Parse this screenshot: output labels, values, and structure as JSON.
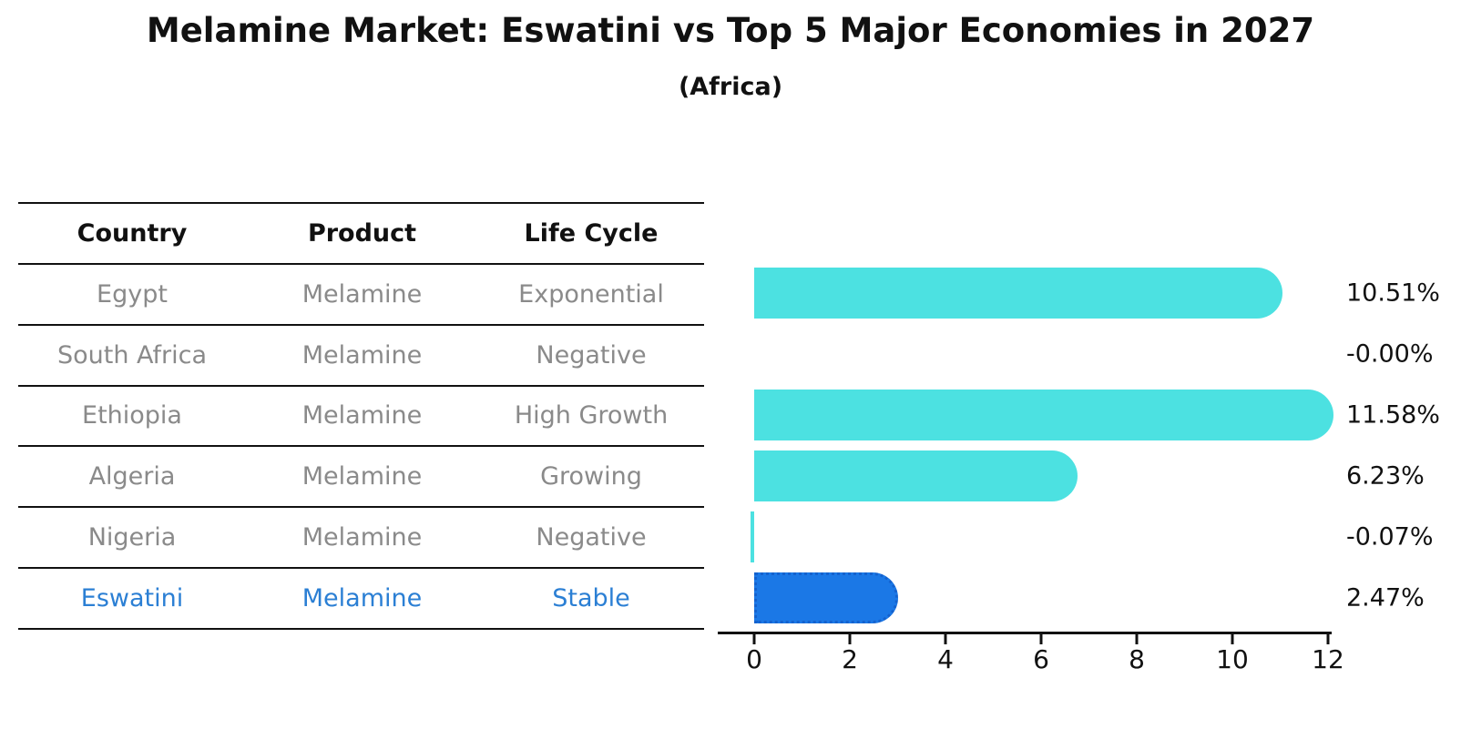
{
  "title": "Melamine Market: Eswatini vs Top 5 Major Economies in 2027",
  "subtitle": "(Africa)",
  "table": {
    "headers": [
      "Country",
      "Product",
      "Life Cycle"
    ],
    "rows": [
      {
        "country": "Egypt",
        "product": "Melamine",
        "life_cycle": "Exponential",
        "highlight": false
      },
      {
        "country": "South Africa",
        "product": "Melamine",
        "life_cycle": "Negative",
        "highlight": false
      },
      {
        "country": "Ethiopia",
        "product": "Melamine",
        "life_cycle": "High Growth",
        "highlight": false
      },
      {
        "country": "Algeria",
        "product": "Melamine",
        "life_cycle": "Growing",
        "highlight": false
      },
      {
        "country": "Nigeria",
        "product": "Melamine",
        "life_cycle": "Negative",
        "highlight": false
      },
      {
        "country": "Eswatini",
        "product": "Melamine",
        "life_cycle": "Stable",
        "highlight": true
      }
    ]
  },
  "chart_data": {
    "type": "bar",
    "orientation": "horizontal",
    "categories": [
      "Egypt",
      "South Africa",
      "Ethiopia",
      "Algeria",
      "Nigeria",
      "Eswatini"
    ],
    "values": [
      10.51,
      -0.0,
      11.58,
      6.23,
      -0.07,
      2.47
    ],
    "value_labels": [
      "10.51%",
      "-0.00%",
      "11.58%",
      "6.23%",
      "-0.07%",
      "2.47%"
    ],
    "xticks": [
      0,
      2,
      4,
      6,
      8,
      10,
      12
    ],
    "xlim": [
      -0.8,
      12.1
    ],
    "highlight_index": 5,
    "grid": false,
    "legend": "none",
    "colors": {
      "bar": "#4CE1E1",
      "highlight_bar": "#1B78E6",
      "highlight_border": "#1462CE",
      "highlight_text": "#2B7FD4",
      "muted_text": "#8A8A8A",
      "axis": "#111111"
    }
  }
}
